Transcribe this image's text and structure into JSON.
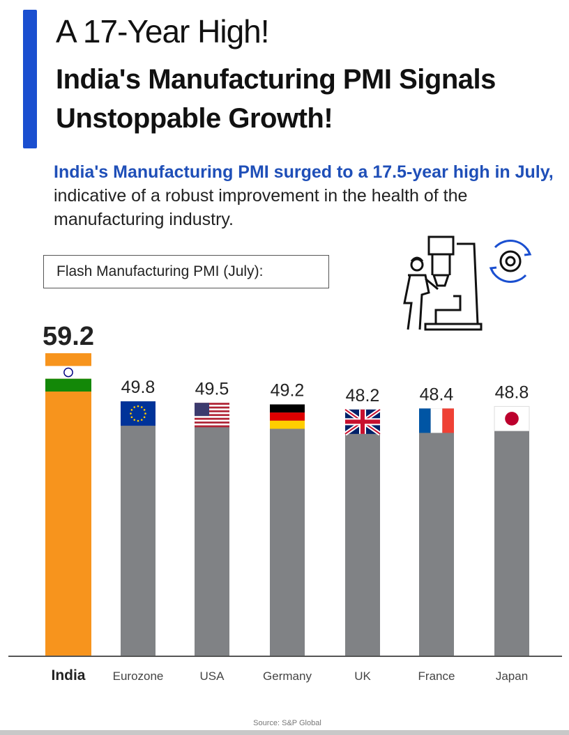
{
  "header": {
    "title": "A 17-Year High!",
    "subtitle": "India's Manufacturing PMI Signals Unstoppable Growth!",
    "intro_highlight": "India's Manufacturing PMI surged to a 17.5-year high in July,",
    "intro_rest": " indicative of a robust improvement in the health of the manufacturing industry.",
    "accent_color": "#1a4fd0"
  },
  "illustration": {
    "icons": [
      "factory-worker-machine-icon",
      "gear-refresh-icon"
    ]
  },
  "chart_data": {
    "type": "bar",
    "title": "Flash Manufacturing PMI (July):",
    "categories": [
      "India",
      "Eurozone",
      "USA",
      "Germany",
      "UK",
      "France",
      "Japan"
    ],
    "values": [
      59.2,
      49.8,
      49.5,
      49.2,
      48.2,
      48.4,
      48.8
    ],
    "data_labels": [
      "59.2",
      "49.8",
      "49.5",
      "49.2",
      "48.2",
      "48.4",
      "48.8"
    ],
    "flags": [
      "india-flag",
      "eu-flag",
      "usa-flag",
      "germany-flag",
      "uk-flag",
      "france-flag",
      "japan-flag"
    ],
    "colors": {
      "highlight": "#f7941d",
      "default": "#808285"
    },
    "ylim": [
      0,
      59.2
    ],
    "grid": false,
    "source": "Source: S&P Global"
  }
}
